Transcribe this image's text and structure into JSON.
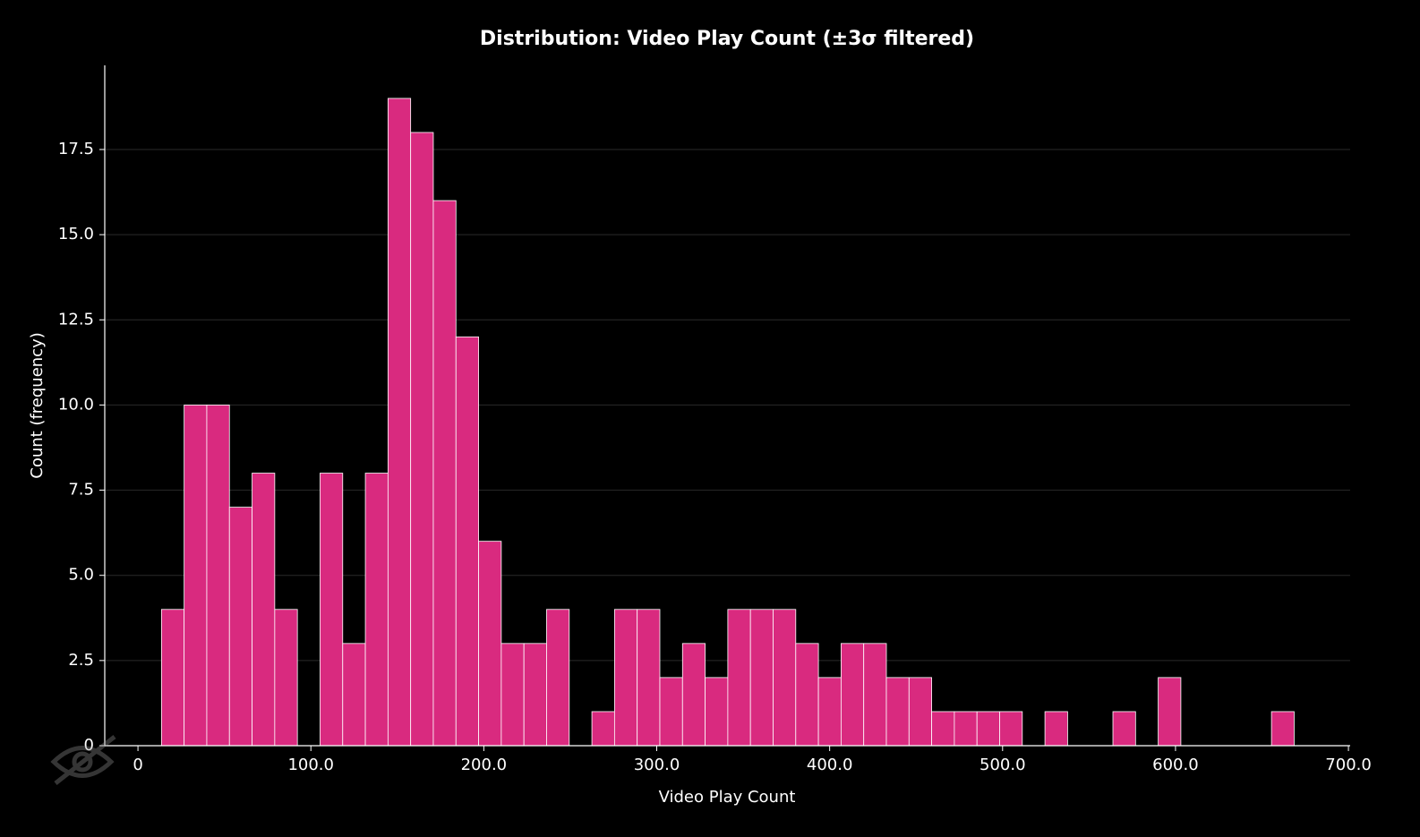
{
  "chart_data": {
    "type": "histogram",
    "title": "Distribution: Video Play Count (±3σ filtered)",
    "x_label": "Video Play Count",
    "y_label": "Count (frequency)",
    "bins": [
      13.6,
      26.7,
      39.8,
      52.9,
      66,
      79.1,
      92.2,
      105.3,
      118.4,
      131.5,
      144.6,
      157.7,
      170.8,
      183.9,
      197,
      210.1,
      223.2,
      236.3,
      249.4,
      262.5,
      275.6,
      288.7,
      301.8,
      314.9,
      328,
      341.1,
      354.2,
      367.3,
      380.4,
      393.5,
      406.6,
      419.7,
      432.8,
      445.9,
      459,
      472.1,
      485.2,
      498.3,
      511.4,
      524.5,
      537.6,
      550.7,
      563.8,
      576.9,
      590,
      603.1,
      616.2,
      629.3,
      642.4,
      655.5,
      668.6
    ],
    "values": [
      4,
      10,
      10,
      7,
      8,
      4,
      0,
      8,
      3,
      8,
      19,
      18,
      16,
      12,
      6,
      3,
      3,
      4,
      0,
      1,
      4,
      4,
      2,
      3,
      2,
      4,
      4,
      4,
      3,
      2,
      3,
      3,
      2,
      2,
      1,
      1,
      1,
      1,
      0,
      1,
      0,
      0,
      1,
      0,
      2,
      0,
      0,
      0,
      0,
      1
    ],
    "color": "#d92a7f",
    "xlim": [
      -19.2,
      701
    ],
    "ylim": [
      0,
      19.97
    ],
    "xticks": [
      0,
      {
        "value": 100,
        "label": "100.0"
      },
      {
        "value": 200,
        "label": "200.0"
      },
      {
        "value": 300,
        "label": "300.0"
      },
      {
        "value": 400,
        "label": "400.0"
      },
      {
        "value": 500,
        "label": "500.0"
      },
      {
        "value": 600,
        "label": "600.0"
      },
      {
        "value": 700,
        "label": "700.0"
      }
    ],
    "yticks": [
      0,
      2.5,
      {
        "value": 5,
        "label": "5.0"
      },
      7.5,
      {
        "value": 10,
        "label": "10.0"
      },
      12.5,
      {
        "value": 15,
        "label": "15.0"
      },
      17.5
    ],
    "grid": true
  }
}
